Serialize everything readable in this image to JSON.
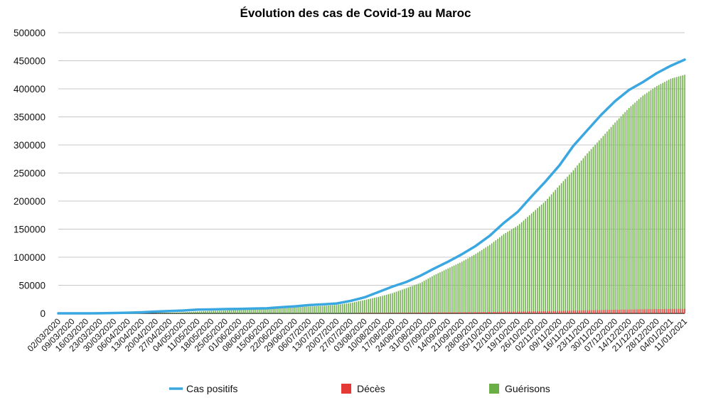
{
  "chart_data": {
    "type": "bar+line",
    "title": "Évolution des cas de Covid-19 au Maroc",
    "xlabel": "",
    "ylabel": "",
    "ylim": [
      0,
      500000
    ],
    "yticks": [
      0,
      50000,
      100000,
      150000,
      200000,
      250000,
      300000,
      350000,
      400000,
      450000,
      500000
    ],
    "ytick_labels": [
      "0",
      "50000",
      "100000",
      "150000",
      "200000",
      "250000",
      "300000",
      "350000",
      "400000",
      "450000",
      "500000"
    ],
    "x_start": "02/03/2020",
    "x_end": "11/01/2021",
    "x_step_days": 7,
    "xtick_labels": [
      "02/03/2020",
      "09/03/2020",
      "16/03/2020",
      "23/03/2020",
      "30/03/2020",
      "06/04/2020",
      "13/04/2020",
      "20/04/2020",
      "27/04/2020",
      "04/05/2020",
      "11/05/2020",
      "18/05/2020",
      "25/05/2020",
      "01/06/2020",
      "08/06/2020",
      "15/06/2020",
      "22/06/2020",
      "29/06/2020",
      "06/07/2020",
      "13/07/2020",
      "20/07/2020",
      "27/07/2020",
      "03/08/2020",
      "10/08/2020",
      "17/08/2020",
      "24/08/2020",
      "31/08/2020",
      "07/09/2020",
      "14/09/2020",
      "21/09/2020",
      "28/09/2020",
      "05/10/2020",
      "12/10/2020",
      "19/10/2020",
      "26/10/2020",
      "02/11/2020",
      "09/11/2020",
      "16/11/2020",
      "23/11/2020",
      "30/11/2020",
      "07/12/2020",
      "14/12/2020",
      "21/12/2020",
      "28/12/2020",
      "04/01/2021",
      "11/01/2021"
    ],
    "grid": true,
    "legend_position": "bottom",
    "series": [
      {
        "name": "Cas positifs",
        "type": "line",
        "color": "#3aa7e0",
        "values": [
          1,
          18,
          37,
          143,
          602,
          1141,
          1888,
          3209,
          4115,
          5053,
          6652,
          7023,
          7577,
          7922,
          8537,
          9074,
          10907,
          12533,
          14771,
          15936,
          17562,
          22213,
          28500,
          37935,
          47638,
          55864,
          66855,
          79767,
          92016,
          105346,
          120314,
          138385,
          160992,
          180696,
          208324,
          234906,
          263542,
          298359,
          326114,
          353620,
          378000,
          398000,
          412000,
          428000,
          441000,
          452000
        ]
      },
      {
        "name": "Décès",
        "type": "bar",
        "color": "#e53935",
        "values": [
          0,
          1,
          2,
          11,
          36,
          93,
          126,
          145,
          161,
          181,
          188,
          192,
          200,
          205,
          211,
          216,
          228,
          235,
          242,
          255,
          280,
          346,
          514,
          671,
          851,
          1011,
          1198,
          1453,
          1646,
          1907,
          2218,
          2503,
          2878,
          3134,
          3562,
          3881,
          4263,
          4836,
          5345,
          5905,
          6417,
          6843,
          7229,
          7537,
          7812,
          7988
        ]
      },
      {
        "name": "Guérisons",
        "type": "bar",
        "color": "#6aaf45",
        "values": [
          0,
          1,
          2,
          5,
          35,
          82,
          221,
          373,
          984,
          2037,
          3298,
          4280,
          4978,
          7195,
          7633,
          8206,
          8790,
          10500,
          12090,
          13126,
          15000,
          18500,
          23800,
          29300,
          36000,
          45000,
          54000,
          68000,
          80000,
          92000,
          106000,
          122000,
          141000,
          156000,
          178000,
          200000,
          228000,
          255000,
          285000,
          312000,
          340000,
          366000,
          388000,
          405000,
          418000,
          425000
        ]
      }
    ]
  }
}
